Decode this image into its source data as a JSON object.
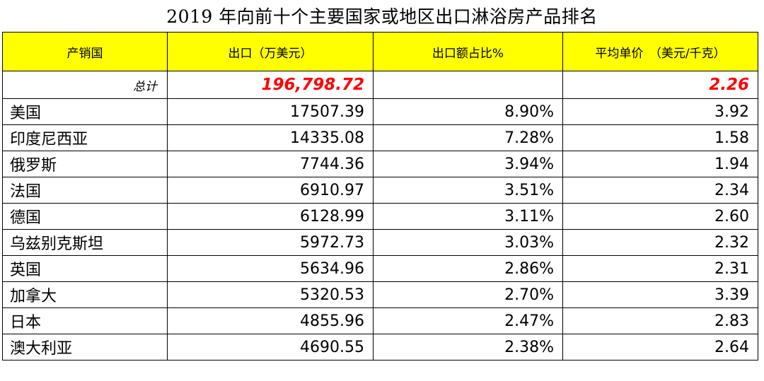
{
  "chart_data": {
    "type": "table",
    "title": "2019 年向前十个主要国家或地区出口淋浴房产品排名",
    "columns": [
      "产销国",
      "出口（万美元）",
      "出口额占比%",
      "平均单价　（美元/千克）"
    ],
    "total": {
      "label": "总计",
      "export": "196,798.72",
      "share": "",
      "unit_price": "2.26"
    },
    "rows": [
      {
        "country": "美国",
        "export": "17507.39",
        "share": "8.90%",
        "unit_price": "3.92"
      },
      {
        "country": "印度尼西亚",
        "export": "14335.08",
        "share": "7.28%",
        "unit_price": "1.58"
      },
      {
        "country": "俄罗斯",
        "export": "7744.36",
        "share": "3.94%",
        "unit_price": "1.94"
      },
      {
        "country": "法国",
        "export": "6910.97",
        "share": "3.51%",
        "unit_price": "2.34"
      },
      {
        "country": "德国",
        "export": "6128.99",
        "share": "3.11%",
        "unit_price": "2.60"
      },
      {
        "country": "乌兹别克斯坦",
        "export": "5972.73",
        "share": "3.03%",
        "unit_price": "2.32"
      },
      {
        "country": "英国",
        "export": "5634.96",
        "share": "2.86%",
        "unit_price": "2.31"
      },
      {
        "country": "加拿大",
        "export": "5320.53",
        "share": "2.70%",
        "unit_price": "3.39"
      },
      {
        "country": "日本",
        "export": "4855.96",
        "share": "2.47%",
        "unit_price": "2.83"
      },
      {
        "country": "澳大利亚",
        "export": "4690.55",
        "share": "2.38%",
        "unit_price": "2.64"
      }
    ],
    "colors": {
      "header_bg": "#ffff00",
      "total_text": "#ff0000"
    }
  }
}
